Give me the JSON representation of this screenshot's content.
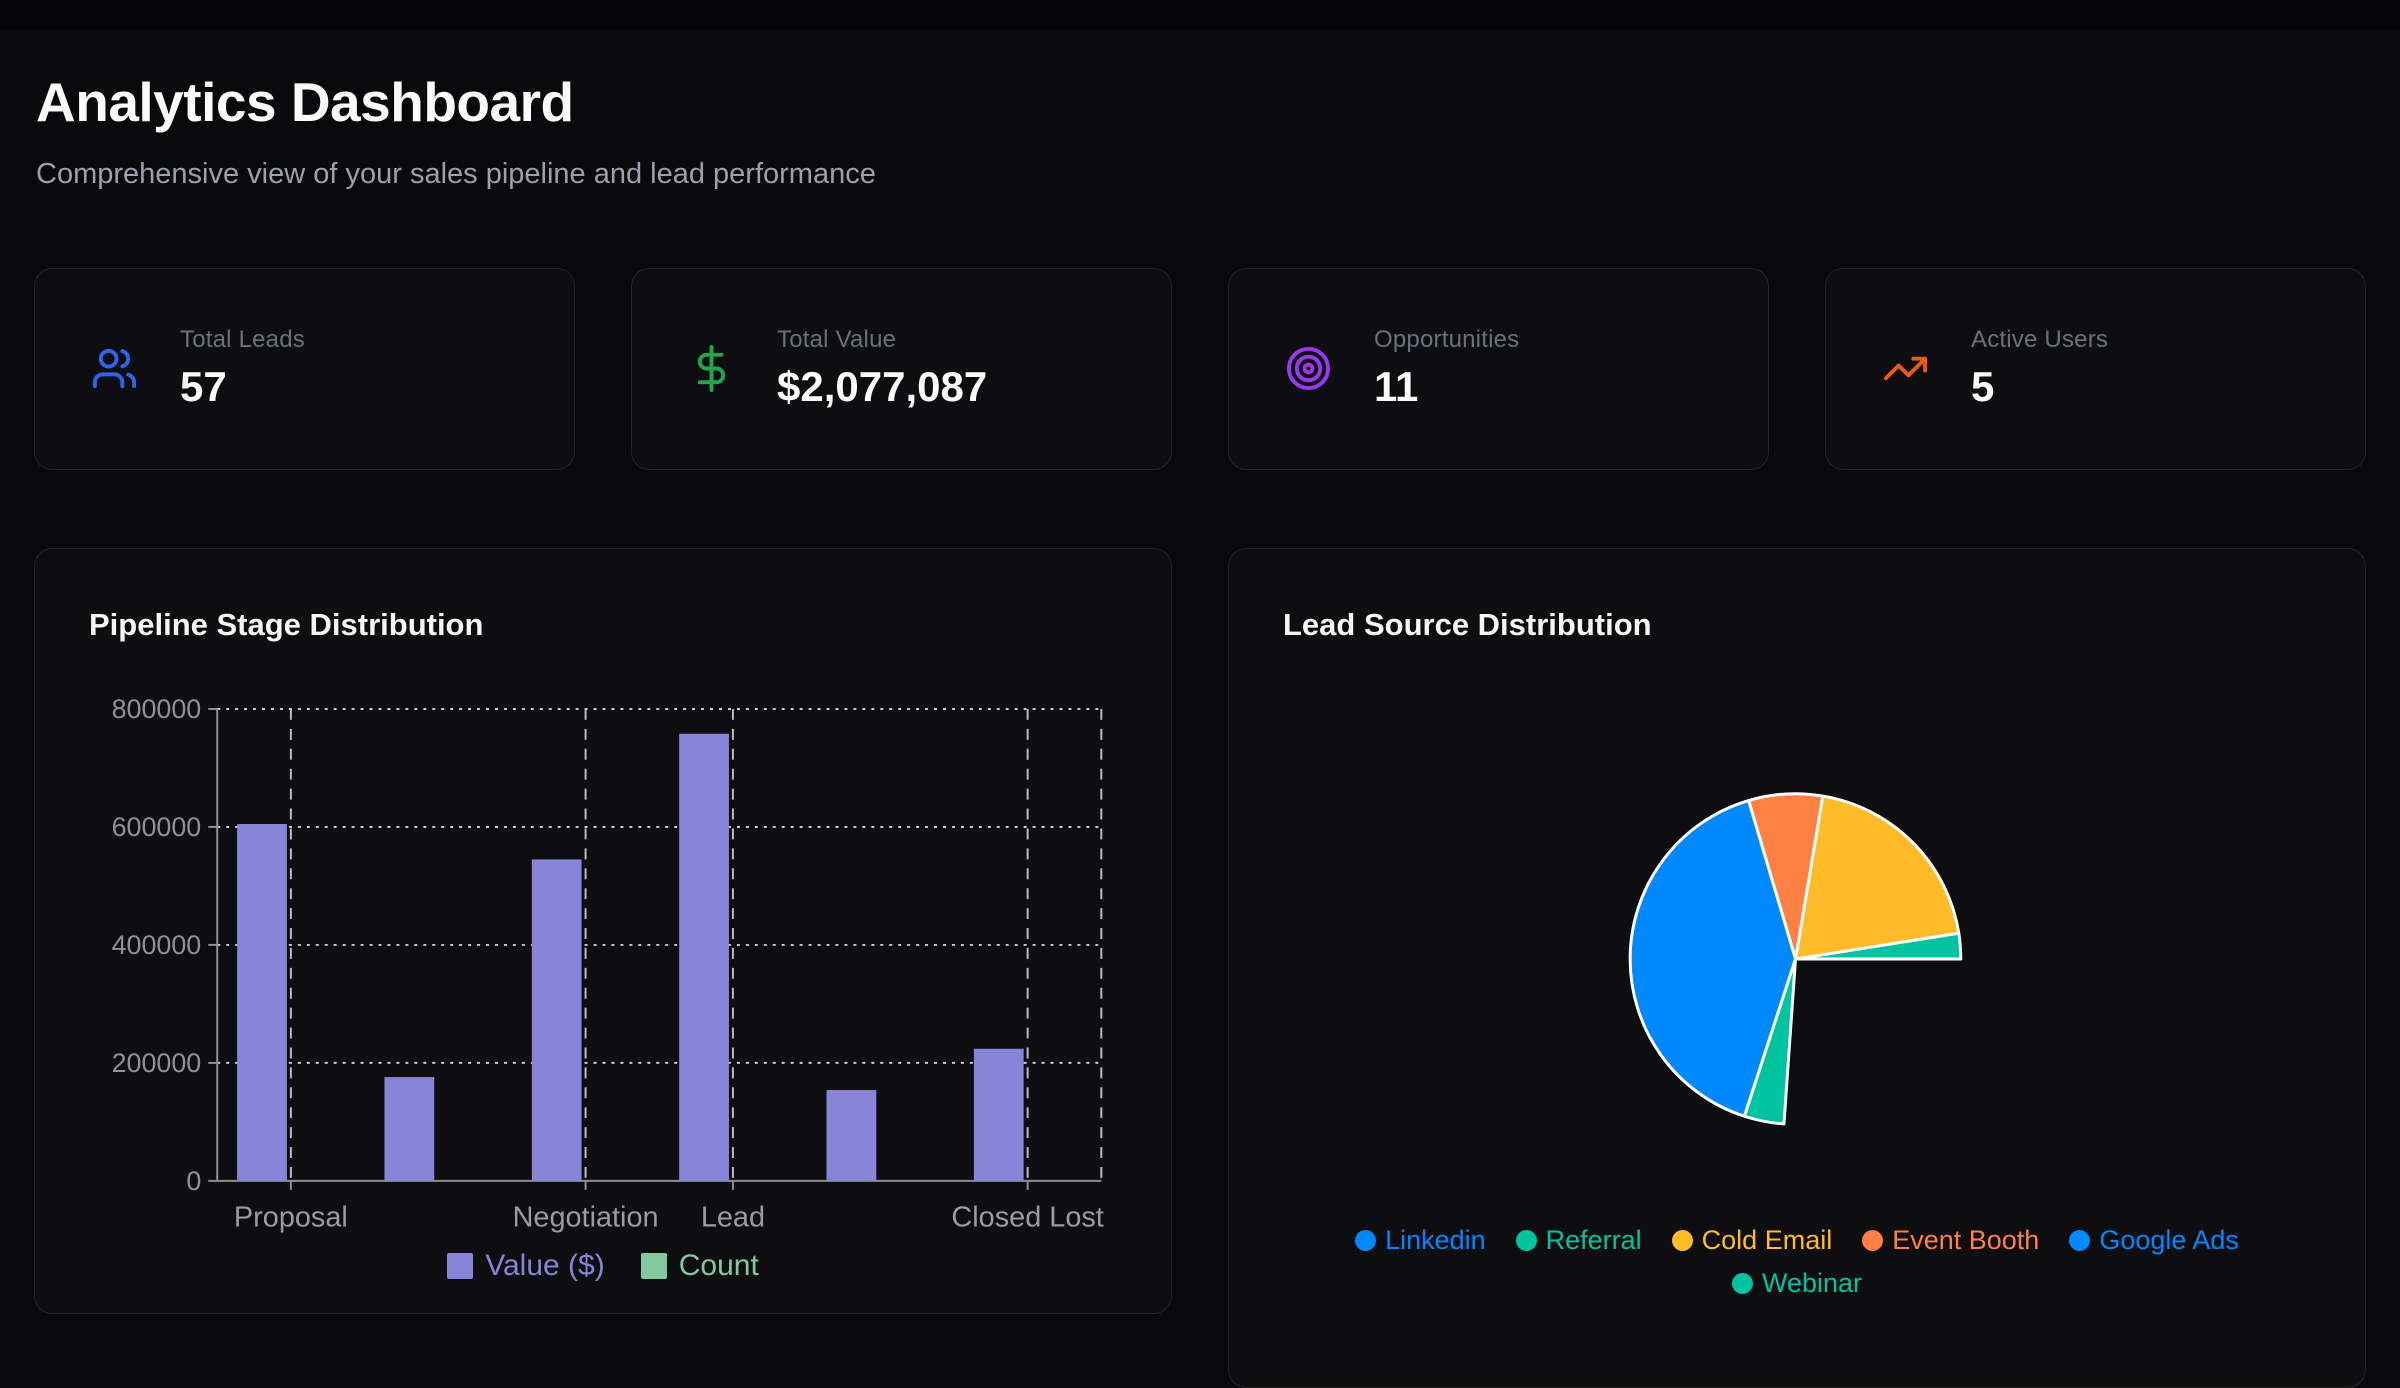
{
  "header": {
    "title": "Analytics Dashboard",
    "subtitle": "Comprehensive view of your sales pipeline and lead performance"
  },
  "stats": [
    {
      "label": "Total Leads",
      "value": "57",
      "icon": "users-icon",
      "color": "#2f63ec"
    },
    {
      "label": "Total Value",
      "value": "$2,077,087",
      "icon": "dollar-sign-icon",
      "color": "#20a551"
    },
    {
      "label": "Opportunities",
      "value": "11",
      "icon": "target-icon",
      "color": "#9d36f0"
    },
    {
      "label": "Active Users",
      "value": "5",
      "icon": "trending-up-icon",
      "color": "#e85d0d"
    }
  ],
  "chart_data": [
    {
      "type": "bar",
      "title": "Pipeline Stage Distribution",
      "categories": [
        "Proposal",
        "",
        "Negotiation",
        "Lead",
        "",
        "Closed Lost"
      ],
      "labeled_category_indices": [
        0,
        2,
        3,
        5
      ],
      "series": [
        {
          "name": "Value ($)",
          "color": "#8884d8",
          "values": [
            605000,
            176000,
            545000,
            758000,
            154000,
            224000
          ]
        },
        {
          "name": "Count",
          "color": "#82ca9d",
          "values": [
            null,
            null,
            null,
            null,
            null,
            null
          ],
          "note": "count bars not visible at dollar axis scale"
        }
      ],
      "xlabel": "",
      "ylabel": "",
      "ylim": [
        0,
        800000
      ],
      "yticks": [
        0,
        200000,
        400000,
        600000,
        800000
      ],
      "grid": "dashed",
      "legend_position": "bottom"
    },
    {
      "type": "pie",
      "title": "Lead Source Distribution",
      "angle_convention": "degrees counterclockwise from 3 o'clock",
      "slices": [
        {
          "label": "Linkedin",
          "color": "#0088FE",
          "start_deg": 266,
          "end_deg": 360,
          "percent": 26.1,
          "painted": false
        },
        {
          "label": "Referral",
          "color": "#00C49F",
          "start_deg": 0,
          "end_deg": 9,
          "percent": 2.5,
          "painted": true
        },
        {
          "label": "Cold Email",
          "color": "#FFBB28",
          "start_deg": 9,
          "end_deg": 80.5,
          "percent": 19.9,
          "painted": true
        },
        {
          "label": "Event Booth",
          "color": "#FF8042",
          "start_deg": 80.5,
          "end_deg": 106.5,
          "percent": 7.2,
          "painted": true
        },
        {
          "label": "Google Ads",
          "color": "#0088FE",
          "start_deg": 106.5,
          "end_deg": 252,
          "percent": 40.4,
          "painted": true
        },
        {
          "label": "Webinar",
          "color": "#00C49F",
          "start_deg": 252,
          "end_deg": 266,
          "percent": 3.9,
          "painted": true
        }
      ],
      "legend_rows": [
        5,
        1
      ],
      "legend_position": "bottom"
    }
  ]
}
